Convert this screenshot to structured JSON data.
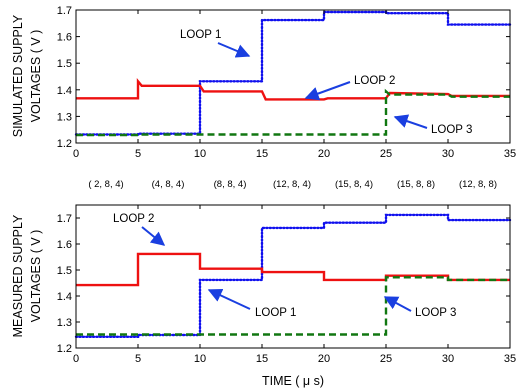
{
  "colors": {
    "loop1": "#1010ee",
    "loop2": "#ee1111",
    "loop3": "#117711",
    "arrow": "#1a3fe0",
    "axis": "#000000"
  },
  "chart_data": [
    {
      "type": "line",
      "ylabel": [
        "SIMULATED SUPPLY",
        "VOLTAGES ( V )"
      ],
      "xlabel": "",
      "xlim": [
        0,
        35
      ],
      "ylim": [
        1.2,
        1.7
      ],
      "xticks": [
        0,
        5,
        10,
        15,
        20,
        25,
        30,
        35
      ],
      "yticks": [
        1.2,
        1.3,
        1.4,
        1.5,
        1.6,
        1.7
      ],
      "grid": false,
      "configurations": [
        "( 2, 8, 4)",
        "(4, 8, 4)",
        "(8, 8, 4)",
        "(12, 8, 4)",
        "(15, 8, 4)",
        "(15, 8, 8)",
        "(12, 8, 8)"
      ],
      "series": [
        {
          "name": "LOOP 1",
          "style": "dotted",
          "color": "#1010ee",
          "x": [
            0,
            5,
            5,
            10,
            10,
            15,
            15,
            20,
            20,
            25,
            25,
            30,
            30,
            35
          ],
          "y": [
            1.232,
            1.232,
            1.235,
            1.235,
            1.432,
            1.432,
            1.662,
            1.662,
            1.692,
            1.692,
            1.688,
            1.688,
            1.645,
            1.645
          ]
        },
        {
          "name": "LOOP 2",
          "style": "solid",
          "color": "#ee1111",
          "x": [
            0,
            5,
            5,
            5.3,
            10,
            10.3,
            15,
            15.3,
            20,
            20.3,
            25,
            25.3,
            30,
            30.3,
            35
          ],
          "y": [
            1.368,
            1.368,
            1.432,
            1.415,
            1.415,
            1.394,
            1.394,
            1.364,
            1.364,
            1.368,
            1.368,
            1.388,
            1.384,
            1.377,
            1.377
          ]
        },
        {
          "name": "LOOP 3",
          "style": "dashed",
          "color": "#117711",
          "x": [
            0,
            5,
            5,
            25,
            25,
            25.3,
            30,
            30.3,
            35
          ],
          "y": [
            1.23,
            1.23,
            1.232,
            1.232,
            1.394,
            1.382,
            1.382,
            1.374,
            1.374
          ]
        }
      ],
      "annotations": [
        "LOOP 1",
        "LOOP 2",
        "LOOP 3"
      ]
    },
    {
      "type": "line",
      "ylabel": [
        "MEASURED SUPPLY",
        "VOLTAGES ( V )"
      ],
      "xlabel": "TIME ( μ s)",
      "xlim": [
        0,
        35
      ],
      "ylim": [
        1.2,
        1.75
      ],
      "xticks": [
        0,
        5,
        10,
        15,
        20,
        25,
        30,
        35
      ],
      "yticks": [
        1.2,
        1.3,
        1.4,
        1.5,
        1.6,
        1.7
      ],
      "grid": false,
      "series": [
        {
          "name": "LOOP 1",
          "style": "dotted",
          "color": "#1010ee",
          "x": [
            0,
            5,
            5,
            10,
            10,
            15,
            15,
            20,
            20,
            25,
            25,
            30,
            30,
            35
          ],
          "y": [
            1.243,
            1.243,
            1.25,
            1.25,
            1.462,
            1.462,
            1.662,
            1.662,
            1.682,
            1.682,
            1.712,
            1.712,
            1.692,
            1.692
          ]
        },
        {
          "name": "LOOP 2",
          "style": "solid",
          "color": "#ee1111",
          "x": [
            0,
            5,
            5,
            10,
            10,
            15,
            15,
            20,
            20,
            25,
            25,
            30,
            30,
            35
          ],
          "y": [
            1.442,
            1.442,
            1.562,
            1.562,
            1.505,
            1.505,
            1.492,
            1.492,
            1.462,
            1.462,
            1.478,
            1.478,
            1.462,
            1.462
          ]
        },
        {
          "name": "LOOP 3",
          "style": "dashed",
          "color": "#117711",
          "x": [
            0,
            25,
            25,
            30,
            30,
            35
          ],
          "y": [
            1.252,
            1.252,
            1.472,
            1.472,
            1.462,
            1.462
          ]
        }
      ],
      "annotations": [
        "LOOP 2",
        "LOOP 1",
        "LOOP 3"
      ]
    }
  ]
}
